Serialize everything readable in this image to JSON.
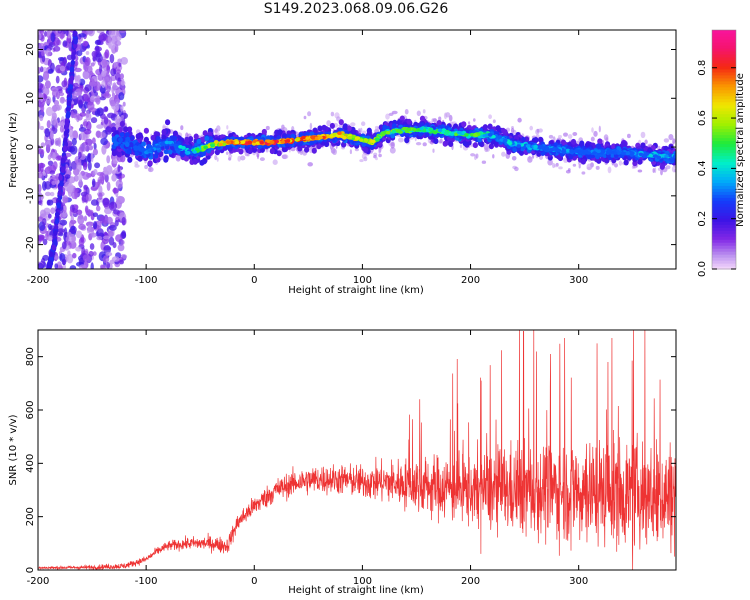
{
  "title": "S149.2023.068.09.06.G26",
  "chart_data": [
    {
      "type": "heatmap",
      "xlabel": "Height of straight line (km)",
      "ylabel": "Frequency (Hz)",
      "xlim": [
        -200,
        390
      ],
      "ylim": [
        -25,
        24
      ],
      "x_ticks": [
        -200,
        -100,
        0,
        100,
        200,
        300
      ],
      "y_ticks": [
        -20,
        -10,
        0,
        10,
        20
      ],
      "colorbar": {
        "label": "Normalized spectral amplitude",
        "range": [
          0,
          0.95
        ],
        "ticks": [
          0.0,
          0.2,
          0.4,
          0.6,
          0.8
        ],
        "tick_labels": [
          "0.0",
          "0.2",
          "0.4",
          "0.6",
          "0.8"
        ],
        "colormap": "rainbow (violet-blue-cyan-green-yellow-red-magenta)"
      },
      "ridge": {
        "name": "",
        "x": [
          -120,
          -100,
          -80,
          -60,
          -50,
          -40,
          -20,
          0,
          20,
          40,
          60,
          80,
          100,
          110,
          120,
          140,
          160,
          180,
          200,
          220,
          240,
          260,
          280,
          300,
          320,
          340,
          360,
          380,
          390
        ],
        "y": [
          1,
          -1,
          1,
          -1,
          -0.5,
          0.5,
          1,
          1,
          1,
          1.5,
          2,
          2.5,
          1.5,
          1,
          3,
          3.5,
          3.5,
          3,
          2.5,
          2.5,
          0.5,
          0,
          -0.5,
          -1,
          -1,
          -1,
          -1.5,
          -2,
          -2
        ],
        "peak_amplitude": [
          0.3,
          0.35,
          0.4,
          0.5,
          0.6,
          0.7,
          0.85,
          0.9,
          0.9,
          0.85,
          0.85,
          0.8,
          0.7,
          0.7,
          0.6,
          0.6,
          0.55,
          0.55,
          0.6,
          0.5,
          0.45,
          0.4,
          0.4,
          0.35,
          0.35,
          0.35,
          0.4,
          0.45,
          0.4
        ]
      },
      "streak": {
        "x": [
          -165,
          -175,
          -185,
          -190
        ],
        "y": [
          24,
          0,
          -20,
          -25
        ]
      }
    },
    {
      "type": "line",
      "xlabel": "Height of straight line (km)",
      "ylabel": "SNR (10 * v/v)",
      "xlim": [
        -200,
        390
      ],
      "ylim": [
        0,
        900
      ],
      "x_ticks": [
        -200,
        -100,
        0,
        100,
        200,
        300
      ],
      "y_ticks": [
        0,
        200,
        400,
        600,
        800
      ],
      "color": "#ee3333",
      "baseline_envelope": {
        "x": [
          -200,
          -150,
          -120,
          -100,
          -90,
          -80,
          -60,
          -40,
          -25,
          -15,
          -5,
          0,
          10,
          20,
          40,
          60,
          80,
          100,
          120,
          150,
          180,
          200,
          230,
          260,
          300,
          340,
          390
        ],
        "y": [
          8,
          10,
          15,
          40,
          70,
          90,
          100,
          100,
          90,
          180,
          220,
          240,
          270,
          300,
          330,
          340,
          340,
          330,
          330,
          320,
          310,
          300,
          300,
          300,
          300,
          290,
          280
        ]
      },
      "noise_amplitude": {
        "x": [
          -200,
          -100,
          -50,
          -10,
          50,
          100,
          150,
          200,
          250,
          300,
          390
        ],
        "y": [
          5,
          15,
          30,
          40,
          60,
          70,
          120,
          160,
          200,
          220,
          230
        ]
      },
      "peaks": [
        {
          "x": 249,
          "y": 895
        },
        {
          "x": 287,
          "y": 870
        },
        {
          "x": 317,
          "y": 850
        },
        {
          "x": 274,
          "y": 810
        },
        {
          "x": 327,
          "y": 780
        }
      ]
    }
  ]
}
